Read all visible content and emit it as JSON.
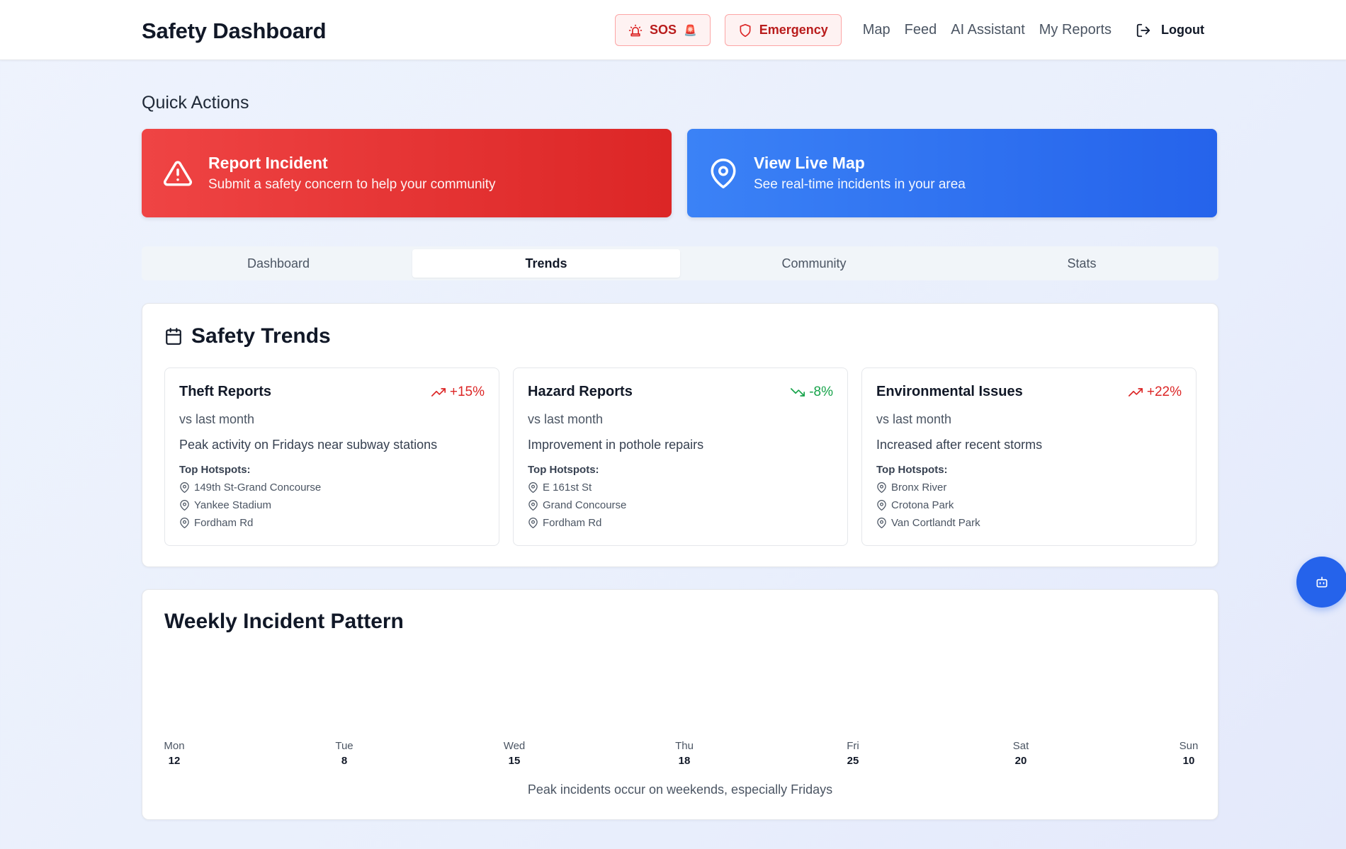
{
  "header": {
    "title": "Safety Dashboard",
    "sos_label": "SOS",
    "sos_emoji": "🚨",
    "emergency_label": "Emergency",
    "nav": [
      "Map",
      "Feed",
      "AI Assistant",
      "My Reports"
    ],
    "logout_label": "Logout"
  },
  "quick_actions": {
    "title": "Quick Actions",
    "report": {
      "title": "Report Incident",
      "subtitle": "Submit a safety concern to help your community",
      "icon": "alert-triangle-icon",
      "color": "#dc2626"
    },
    "map": {
      "title": "View Live Map",
      "subtitle": "See real-time incidents in your area",
      "icon": "map-pin-icon",
      "color": "#2563eb"
    }
  },
  "tabs": [
    {
      "label": "Dashboard",
      "active": false
    },
    {
      "label": "Trends",
      "active": true
    },
    {
      "label": "Community",
      "active": false
    },
    {
      "label": "Stats",
      "active": false
    }
  ],
  "trends": {
    "title": "Safety Trends",
    "hotspots_label": "Top Hotspots:",
    "cards": [
      {
        "title": "Theft Reports",
        "delta": "+15%",
        "direction": "up",
        "compare": "vs last month",
        "note": "Peak activity on Fridays near subway stations",
        "hotspots": [
          "149th St-Grand Concourse",
          "Yankee Stadium",
          "Fordham Rd"
        ]
      },
      {
        "title": "Hazard Reports",
        "delta": "-8%",
        "direction": "down",
        "compare": "vs last month",
        "note": "Improvement in pothole repairs",
        "hotspots": [
          "E 161st St",
          "Grand Concourse",
          "Fordham Rd"
        ]
      },
      {
        "title": "Environmental Issues",
        "delta": "+22%",
        "direction": "up",
        "compare": "vs last month",
        "note": "Increased after recent storms",
        "hotspots": [
          "Bronx River",
          "Crotona Park",
          "Van Cortlandt Park"
        ]
      }
    ]
  },
  "weekly": {
    "title": "Weekly Incident Pattern",
    "days": [
      {
        "day": "Mon",
        "value": 12
      },
      {
        "day": "Tue",
        "value": 8
      },
      {
        "day": "Wed",
        "value": 15
      },
      {
        "day": "Thu",
        "value": 18
      },
      {
        "day": "Fri",
        "value": 25
      },
      {
        "day": "Sat",
        "value": 20
      },
      {
        "day": "Sun",
        "value": 10
      }
    ],
    "footnote": "Peak incidents occur on weekends, especially Fridays"
  },
  "fab": {
    "icon": "bot-icon"
  }
}
